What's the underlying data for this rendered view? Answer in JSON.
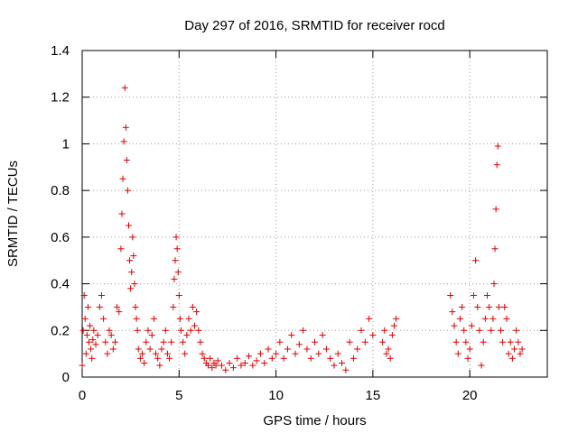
{
  "chart_data": {
    "type": "scatter",
    "title": "Day 297 of 2016, SRMTID for receiver rocd",
    "xlabel": "GPS time / hours",
    "ylabel": "SRMTID / TECUs",
    "xlim": [
      0,
      24
    ],
    "ylim": [
      0,
      1.4
    ],
    "x_ticks": [
      0,
      5,
      10,
      15,
      20
    ],
    "y_ticks": [
      0,
      0.2,
      0.4,
      0.6,
      0.8,
      1,
      1.2,
      1.4
    ],
    "x_tick_labels": [
      "0",
      "5",
      "10",
      "15",
      "20"
    ],
    "y_tick_labels": [
      "0",
      "0.2",
      "0.4",
      "0.6",
      "0.8",
      "1",
      "1.2",
      "1.4"
    ],
    "grid": true,
    "marker": "+",
    "series": [
      {
        "name": "SRMTID",
        "color": "#e00000",
        "x": [
          0.0,
          0.05,
          0.1,
          0.15,
          0.2,
          0.25,
          0.3,
          0.35,
          0.4,
          0.45,
          0.5,
          0.55,
          0.6,
          0.7,
          0.8,
          0.9,
          1.0,
          1.1,
          1.2,
          1.3,
          1.4,
          1.5,
          1.6,
          1.7,
          1.8,
          1.9,
          2.0,
          2.05,
          2.1,
          2.15,
          2.2,
          2.25,
          2.3,
          2.35,
          2.4,
          2.45,
          2.5,
          2.55,
          2.6,
          2.65,
          2.7,
          2.75,
          2.8,
          2.85,
          2.9,
          3.0,
          3.1,
          3.2,
          3.3,
          3.4,
          3.5,
          3.6,
          3.7,
          3.8,
          3.9,
          4.0,
          4.1,
          4.2,
          4.3,
          4.4,
          4.5,
          4.6,
          4.7,
          4.75,
          4.8,
          4.85,
          4.9,
          4.95,
          5.0,
          5.05,
          5.1,
          5.2,
          5.3,
          5.4,
          5.5,
          5.6,
          5.7,
          5.8,
          5.9,
          6.0,
          6.1,
          6.2,
          6.3,
          6.4,
          6.5,
          6.6,
          6.7,
          6.8,
          6.9,
          7.0,
          7.2,
          7.4,
          7.6,
          7.8,
          8.0,
          8.2,
          8.4,
          8.6,
          8.8,
          9.0,
          9.2,
          9.4,
          9.6,
          9.8,
          10.0,
          10.2,
          10.4,
          10.6,
          10.8,
          11.0,
          11.2,
          11.4,
          11.6,
          11.8,
          12.0,
          12.2,
          12.4,
          12.6,
          12.8,
          13.0,
          13.2,
          13.4,
          13.6,
          13.8,
          14.0,
          14.2,
          14.4,
          14.6,
          14.8,
          15.0,
          15.5,
          15.6,
          15.7,
          15.8,
          15.9,
          16.0,
          16.1,
          16.2,
          19.0,
          19.1,
          19.2,
          19.3,
          19.4,
          19.5,
          19.6,
          19.7,
          19.8,
          19.9,
          20.0,
          20.1,
          20.2,
          20.3,
          20.4,
          20.5,
          20.6,
          20.7,
          20.8,
          20.9,
          21.0,
          21.1,
          21.2,
          21.25,
          21.3,
          21.35,
          21.4,
          21.45,
          21.5,
          21.6,
          21.7,
          21.8,
          21.9,
          22.0,
          22.1,
          22.2,
          22.3,
          22.4,
          22.5,
          22.6,
          22.7
        ],
        "y": [
          0.05,
          0.2,
          0.35,
          0.25,
          0.1,
          0.18,
          0.3,
          0.15,
          0.22,
          0.12,
          0.08,
          0.16,
          0.2,
          0.14,
          0.18,
          0.3,
          0.35,
          0.25,
          0.15,
          0.1,
          0.2,
          0.18,
          0.12,
          0.15,
          0.3,
          0.28,
          0.55,
          0.7,
          0.85,
          1.01,
          1.24,
          1.07,
          0.93,
          0.8,
          0.65,
          0.5,
          0.38,
          0.45,
          0.6,
          0.52,
          0.4,
          0.3,
          0.25,
          0.2,
          0.12,
          0.08,
          0.1,
          0.06,
          0.15,
          0.2,
          0.12,
          0.18,
          0.25,
          0.1,
          0.08,
          0.05,
          0.12,
          0.15,
          0.2,
          0.1,
          0.08,
          0.15,
          0.3,
          0.42,
          0.5,
          0.6,
          0.55,
          0.45,
          0.35,
          0.25,
          0.2,
          0.15,
          0.1,
          0.18,
          0.25,
          0.2,
          0.3,
          0.22,
          0.28,
          0.2,
          0.15,
          0.1,
          0.08,
          0.06,
          0.05,
          0.08,
          0.04,
          0.06,
          0.05,
          0.07,
          0.05,
          0.03,
          0.06,
          0.04,
          0.08,
          0.05,
          0.06,
          0.09,
          0.05,
          0.07,
          0.1,
          0.06,
          0.12,
          0.08,
          0.1,
          0.15,
          0.08,
          0.12,
          0.18,
          0.1,
          0.14,
          0.2,
          0.12,
          0.08,
          0.15,
          0.1,
          0.18,
          0.12,
          0.08,
          0.05,
          0.1,
          0.06,
          0.03,
          0.15,
          0.08,
          0.12,
          0.2,
          0.15,
          0.25,
          0.18,
          0.15,
          0.2,
          0.1,
          0.12,
          0.08,
          0.18,
          0.22,
          0.25,
          0.35,
          0.28,
          0.22,
          0.15,
          0.1,
          0.25,
          0.3,
          0.2,
          0.15,
          0.08,
          0.12,
          0.22,
          0.35,
          0.5,
          0.3,
          0.2,
          0.05,
          0.15,
          0.25,
          0.35,
          0.3,
          0.2,
          0.25,
          0.4,
          0.55,
          0.72,
          0.91,
          0.99,
          0.3,
          0.2,
          0.15,
          0.3,
          0.25,
          0.1,
          0.15,
          0.08,
          0.12,
          0.2,
          0.15,
          0.1,
          0.12
        ]
      }
    ]
  }
}
